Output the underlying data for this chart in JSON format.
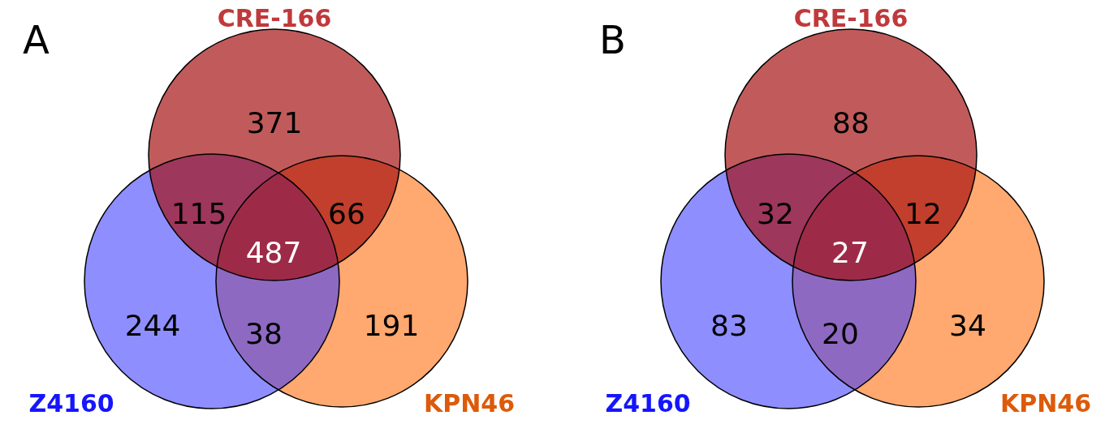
{
  "chart_data": [
    {
      "type": "other",
      "title": "A",
      "categories": [
        null,
        null,
        null,
        null,
        null,
        null,
        null
      ],
      "values": [
        371,
        115,
        66,
        487,
        244,
        38,
        191
      ],
      "data_labels": true,
      "annotations": [
        "CRE-166",
        "Z4160",
        "KPN46"
      ]
    },
    {
      "type": "other",
      "title": "B",
      "categories": [
        null,
        null,
        null,
        null,
        null,
        null,
        null
      ],
      "values": [
        88,
        32,
        12,
        27,
        83,
        20,
        34
      ],
      "data_labels": true,
      "annotations": [
        "CRE-166",
        "Z4160",
        "KPN46"
      ]
    }
  ]
}
